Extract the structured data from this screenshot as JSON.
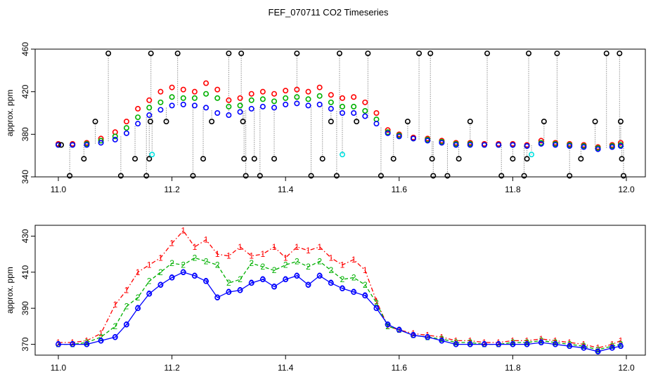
{
  "figure_title": "FEF_070711  CO2 Timeseries",
  "colors": {
    "series1": "#ff0000",
    "series2": "#00b000",
    "series3": "#0000ff",
    "black_marker": "#000000",
    "cyan_marker": "#00e0e0",
    "spike_line": "#909090"
  },
  "chart_data": [
    {
      "type": "scatter",
      "title": "FEF_070711  CO2 Timeseries",
      "xlabel": "",
      "ylabel": "approx. ppm",
      "xlim": [
        11.0,
        12.0
      ],
      "ylim": [
        340,
        460
      ],
      "xticks": [
        11.0,
        11.2,
        11.4,
        11.6,
        11.8,
        12.0
      ],
      "xtick_labels": [
        "11.0",
        "11.2",
        "11.4",
        "11.6",
        "11.8",
        "12.0"
      ],
      "yticks": [
        340,
        380,
        420,
        460
      ],
      "ytick_labels": [
        "340",
        "380",
        "420",
        "460"
      ],
      "grid": false,
      "marker": "circle",
      "x": [
        11.0,
        11.025,
        11.05,
        11.075,
        11.1,
        11.12,
        11.14,
        11.16,
        11.18,
        11.2,
        11.22,
        11.24,
        11.26,
        11.28,
        11.3,
        11.32,
        11.34,
        11.36,
        11.38,
        11.4,
        11.42,
        11.44,
        11.46,
        11.48,
        11.5,
        11.52,
        11.54,
        11.56,
        11.58,
        11.6,
        11.625,
        11.65,
        11.675,
        11.7,
        11.725,
        11.75,
        11.775,
        11.8,
        11.825,
        11.85,
        11.875,
        11.9,
        11.925,
        11.95,
        11.975,
        11.99
      ],
      "series": [
        {
          "name": "1",
          "color": "#ff0000",
          "values": [
            371,
            371,
            372,
            376,
            382,
            392,
            404,
            412,
            420,
            424,
            422,
            420,
            428,
            422,
            412,
            414,
            418,
            420,
            418,
            421,
            422,
            420,
            424,
            417,
            414,
            415,
            410,
            400,
            384,
            380,
            377,
            376,
            374,
            372,
            372,
            371,
            371,
            371,
            370,
            374,
            372,
            371,
            370,
            368,
            370,
            372
          ]
        },
        {
          "name": "2",
          "color": "#00b000",
          "values": [
            370,
            370,
            371,
            374,
            378,
            386,
            396,
            405,
            410,
            415,
            414,
            414,
            418,
            414,
            406,
            407,
            412,
            413,
            411,
            414,
            415,
            413,
            416,
            410,
            406,
            406,
            402,
            394,
            382,
            379,
            376,
            375,
            373,
            371,
            371,
            370,
            370,
            370,
            369,
            372,
            371,
            370,
            369,
            367,
            369,
            370
          ]
        },
        {
          "name": "3",
          "color": "#0000ff",
          "values": [
            370,
            370,
            370,
            372,
            375,
            381,
            390,
            398,
            403,
            407,
            408,
            407,
            405,
            400,
            398,
            401,
            404,
            406,
            405,
            408,
            409,
            407,
            408,
            404,
            400,
            400,
            397,
            390,
            381,
            378,
            376,
            374,
            372,
            370,
            370,
            370,
            370,
            370,
            369,
            371,
            370,
            369,
            368,
            366,
            368,
            369
          ]
        }
      ],
      "black_markers": [
        {
          "x": 11.005,
          "y": 370
        },
        {
          "x": 11.02,
          "y": 341
        },
        {
          "x": 11.045,
          "y": 357
        },
        {
          "x": 11.065,
          "y": 392
        },
        {
          "x": 11.088,
          "y": 456
        },
        {
          "x": 11.11,
          "y": 341
        },
        {
          "x": 11.135,
          "y": 357
        },
        {
          "x": 11.155,
          "y": 341
        },
        {
          "x": 11.16,
          "y": 357
        },
        {
          "x": 11.162,
          "y": 392
        },
        {
          "x": 11.163,
          "y": 456
        },
        {
          "x": 11.19,
          "y": 392
        },
        {
          "x": 11.21,
          "y": 456
        },
        {
          "x": 11.237,
          "y": 341
        },
        {
          "x": 11.255,
          "y": 357
        },
        {
          "x": 11.27,
          "y": 392
        },
        {
          "x": 11.3,
          "y": 456
        },
        {
          "x": 11.322,
          "y": 456
        },
        {
          "x": 11.325,
          "y": 392
        },
        {
          "x": 11.327,
          "y": 357
        },
        {
          "x": 11.33,
          "y": 341
        },
        {
          "x": 11.345,
          "y": 357
        },
        {
          "x": 11.355,
          "y": 341
        },
        {
          "x": 11.38,
          "y": 357
        },
        {
          "x": 11.42,
          "y": 456
        },
        {
          "x": 11.445,
          "y": 341
        },
        {
          "x": 11.465,
          "y": 357
        },
        {
          "x": 11.48,
          "y": 392
        },
        {
          "x": 11.49,
          "y": 341
        },
        {
          "x": 11.495,
          "y": 456
        },
        {
          "x": 11.525,
          "y": 392
        },
        {
          "x": 11.545,
          "y": 456
        },
        {
          "x": 11.568,
          "y": 341
        },
        {
          "x": 11.59,
          "y": 357
        },
        {
          "x": 11.615,
          "y": 392
        },
        {
          "x": 11.635,
          "y": 456
        },
        {
          "x": 11.655,
          "y": 456
        },
        {
          "x": 11.658,
          "y": 357
        },
        {
          "x": 11.66,
          "y": 341
        },
        {
          "x": 11.685,
          "y": 341
        },
        {
          "x": 11.705,
          "y": 357
        },
        {
          "x": 11.725,
          "y": 392
        },
        {
          "x": 11.755,
          "y": 456
        },
        {
          "x": 11.78,
          "y": 341
        },
        {
          "x": 11.8,
          "y": 357
        },
        {
          "x": 11.82,
          "y": 341
        },
        {
          "x": 11.825,
          "y": 357
        },
        {
          "x": 11.828,
          "y": 456
        },
        {
          "x": 11.855,
          "y": 392
        },
        {
          "x": 11.878,
          "y": 456
        },
        {
          "x": 11.9,
          "y": 341
        },
        {
          "x": 11.92,
          "y": 357
        },
        {
          "x": 11.945,
          "y": 392
        },
        {
          "x": 11.965,
          "y": 456
        },
        {
          "x": 11.988,
          "y": 456
        },
        {
          "x": 11.99,
          "y": 392
        },
        {
          "x": 11.992,
          "y": 357
        },
        {
          "x": 11.995,
          "y": 341
        }
      ],
      "cyan_markers": [
        {
          "x": 11.165,
          "y": 361
        },
        {
          "x": 11.5,
          "y": 361
        },
        {
          "x": 11.833,
          "y": 361
        }
      ]
    },
    {
      "type": "line",
      "title": "",
      "xlabel": "",
      "ylabel": "approx. ppm",
      "xlim": [
        11.0,
        12.0
      ],
      "ylim": [
        364,
        436
      ],
      "xticks": [
        11.0,
        11.2,
        11.4,
        11.6,
        11.8,
        12.0
      ],
      "xtick_labels": [
        "11.0",
        "11.2",
        "11.4",
        "11.6",
        "11.8",
        "12.0"
      ],
      "yticks": [
        370,
        390,
        410,
        430
      ],
      "ytick_labels": [
        "370",
        "390",
        "410",
        "430"
      ],
      "grid": false,
      "x": [
        11.0,
        11.025,
        11.05,
        11.075,
        11.1,
        11.12,
        11.14,
        11.16,
        11.18,
        11.2,
        11.22,
        11.24,
        11.26,
        11.28,
        11.3,
        11.32,
        11.34,
        11.36,
        11.38,
        11.4,
        11.42,
        11.44,
        11.46,
        11.48,
        11.5,
        11.52,
        11.54,
        11.56,
        11.58,
        11.6,
        11.625,
        11.65,
        11.675,
        11.7,
        11.725,
        11.75,
        11.775,
        11.8,
        11.825,
        11.85,
        11.875,
        11.9,
        11.925,
        11.95,
        11.975,
        11.99
      ],
      "series": [
        {
          "name": "1",
          "label": "1",
          "color": "#ff0000",
          "style": "dash-dot",
          "values": [
            371,
            371,
            372,
            376,
            392,
            400,
            410,
            414,
            418,
            426,
            433,
            424,
            428,
            420,
            419,
            424,
            419,
            420,
            424,
            418,
            424,
            422,
            424,
            418,
            414,
            417,
            411,
            394,
            380,
            378,
            376,
            375,
            374,
            372,
            372,
            371,
            371,
            372,
            372,
            373,
            372,
            371,
            370,
            368,
            370,
            372
          ]
        },
        {
          "name": "2",
          "label": "2",
          "color": "#00b000",
          "style": "dashed",
          "values": [
            370,
            370,
            371,
            374,
            380,
            391,
            396,
            405,
            410,
            415,
            414,
            418,
            416,
            414,
            404,
            406,
            415,
            413,
            411,
            414,
            416,
            413,
            416,
            411,
            406,
            407,
            403,
            393,
            380,
            378,
            375,
            374,
            373,
            371,
            371,
            370,
            370,
            371,
            371,
            372,
            371,
            370,
            369,
            367,
            369,
            370
          ]
        },
        {
          "name": "3",
          "label": "3",
          "color": "#0000ff",
          "style": "solid",
          "values": [
            370,
            370,
            370,
            372,
            374,
            381,
            390,
            398,
            403,
            407,
            410,
            408,
            405,
            396,
            399,
            400,
            404,
            406,
            402,
            406,
            408,
            403,
            408,
            404,
            401,
            399,
            397,
            390,
            381,
            378,
            375,
            374,
            372,
            370,
            370,
            370,
            370,
            370,
            370,
            371,
            370,
            369,
            368,
            366,
            368,
            369
          ]
        }
      ]
    }
  ]
}
